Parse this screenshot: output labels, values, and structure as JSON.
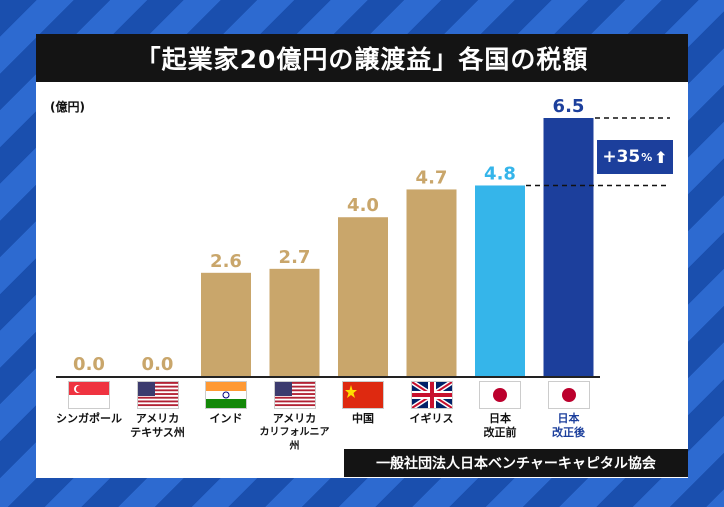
{
  "title": "「起業家20億円の譲渡益」各国の税額",
  "unit_label": "(億円)",
  "source": "一般社団法人日本ベンチャーキャピタル協会",
  "badge": {
    "value": "+35",
    "unit": "%",
    "arrow": "⬆"
  },
  "colors": {
    "tan": "#c9a66b",
    "light_blue": "#35b5ea",
    "dark_blue": "#1c3f9c",
    "value_tan": "#c9a66b"
  },
  "chart_data": {
    "type": "bar",
    "categories": [
      "シンガポール",
      "アメリカ テキサス州",
      "インド",
      "アメリカ カリフォルニア州",
      "中国",
      "イギリス",
      "日本 改正前",
      "日本 改正後"
    ],
    "values": [
      0.0,
      0.0,
      2.6,
      2.7,
      4.0,
      4.7,
      4.8,
      6.5
    ],
    "value_labels": [
      "0.0",
      "0.0",
      "2.6",
      "2.7",
      "4.0",
      "4.7",
      "4.8",
      "6.5"
    ],
    "ylabel": "(億円)",
    "ylim": [
      0,
      6.5
    ],
    "grid": false,
    "annotations": [
      "+35%"
    ]
  },
  "category_labels": [
    {
      "line1": "シンガポール",
      "line2": ""
    },
    {
      "line1": "アメリカ",
      "line2": "テキサス州"
    },
    {
      "line1": "インド",
      "line2": ""
    },
    {
      "line1": "アメリカ",
      "line2": "カリフォルニア州"
    },
    {
      "line1": "中国",
      "line2": ""
    },
    {
      "line1": "イギリス",
      "line2": ""
    },
    {
      "line1": "日本",
      "line2": "改正前"
    },
    {
      "line1": "日本",
      "line2": "改正後"
    }
  ],
  "flags": [
    "singapore-flag-icon",
    "usa-flag-icon",
    "india-flag-icon",
    "usa-flag-icon",
    "china-flag-icon",
    "uk-flag-icon",
    "japan-flag-icon",
    "japan-flag-icon"
  ],
  "bar_colors": [
    "tan",
    "tan",
    "tan",
    "tan",
    "tan",
    "tan",
    "light_blue",
    "dark_blue"
  ]
}
